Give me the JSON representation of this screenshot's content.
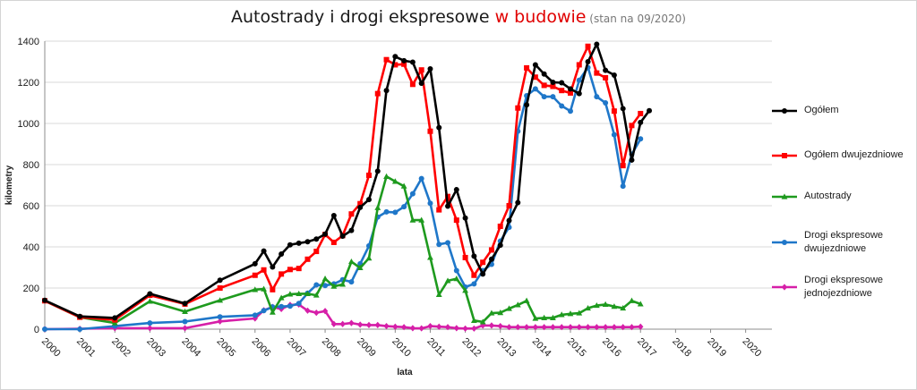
{
  "title": {
    "main": "Autostrady i drogi ekspresowe ",
    "highlight": "w budowie",
    "note": " (stan na 09/2020)"
  },
  "chart_data": {
    "type": "line",
    "title": "Autostrady i drogi ekspresowe w budowie (stan na 09/2020)",
    "xlabel": "lata",
    "ylabel": "kilometry",
    "ylim": [
      0,
      1400
    ],
    "yticks": [
      0,
      200,
      400,
      600,
      800,
      1000,
      1200,
      1400
    ],
    "xlim": [
      2000,
      2020.75
    ],
    "xticks": [
      "2000",
      "2001",
      "2002",
      "2003",
      "2004",
      "2005",
      "2006",
      "2007",
      "2008",
      "2009",
      "2010",
      "2011",
      "2012",
      "2013",
      "2014",
      "2015",
      "2016",
      "2017",
      "2018",
      "2019",
      "2020"
    ],
    "grid": "horizontal",
    "legend_position": "right",
    "series": [
      {
        "name": "Ogółem",
        "color": "#000000",
        "marker": "circle",
        "points": [
          [
            2000,
            140
          ],
          [
            2001,
            62
          ],
          [
            2002,
            55
          ],
          [
            2003,
            172
          ],
          [
            2004,
            125
          ],
          [
            2005,
            238
          ],
          [
            2006,
            318
          ],
          [
            2006.25,
            380
          ],
          [
            2006.5,
            302
          ],
          [
            2006.75,
            365
          ],
          [
            2007,
            410
          ],
          [
            2007.25,
            418
          ],
          [
            2007.5,
            425
          ],
          [
            2007.75,
            438
          ],
          [
            2008,
            462
          ],
          [
            2008.25,
            552
          ],
          [
            2008.5,
            452
          ],
          [
            2008.75,
            480
          ],
          [
            2009,
            592
          ],
          [
            2009.25,
            630
          ],
          [
            2009.5,
            768
          ],
          [
            2009.75,
            1160
          ],
          [
            2010,
            1325
          ],
          [
            2010.25,
            1305
          ],
          [
            2010.5,
            1298
          ],
          [
            2010.75,
            1195
          ],
          [
            2011,
            1265
          ],
          [
            2011.25,
            980
          ],
          [
            2011.5,
            598
          ],
          [
            2011.75,
            678
          ],
          [
            2012,
            540
          ],
          [
            2012.25,
            355
          ],
          [
            2012.5,
            268
          ],
          [
            2012.75,
            340
          ],
          [
            2013,
            408
          ],
          [
            2013.25,
            528
          ],
          [
            2013.5,
            615
          ],
          [
            2013.75,
            1090
          ],
          [
            2014,
            1285
          ],
          [
            2014.25,
            1240
          ],
          [
            2014.5,
            1200
          ],
          [
            2014.75,
            1198
          ],
          [
            2015,
            1168
          ],
          [
            2015.25,
            1145
          ],
          [
            2015.5,
            1300
          ],
          [
            2015.75,
            1385
          ],
          [
            2016,
            1258
          ],
          [
            2016.25,
            1235
          ],
          [
            2016.5,
            1072
          ],
          [
            2016.75,
            822
          ],
          [
            2017,
            1005
          ],
          [
            2017.25,
            1062
          ]
        ]
      },
      {
        "name": "Ogółem dwujezdniowe",
        "color": "#ff0000",
        "marker": "square",
        "points": [
          [
            2000,
            138
          ],
          [
            2001,
            58
          ],
          [
            2002,
            45
          ],
          [
            2003,
            165
          ],
          [
            2004,
            122
          ],
          [
            2005,
            200
          ],
          [
            2006,
            262
          ],
          [
            2006.25,
            288
          ],
          [
            2006.5,
            192
          ],
          [
            2006.75,
            268
          ],
          [
            2007,
            290
          ],
          [
            2007.25,
            295
          ],
          [
            2007.5,
            340
          ],
          [
            2007.75,
            378
          ],
          [
            2008,
            460
          ],
          [
            2008.25,
            422
          ],
          [
            2008.5,
            455
          ],
          [
            2008.75,
            560
          ],
          [
            2009,
            610
          ],
          [
            2009.25,
            748
          ],
          [
            2009.5,
            1145
          ],
          [
            2009.75,
            1310
          ],
          [
            2010,
            1285
          ],
          [
            2010.25,
            1288
          ],
          [
            2010.5,
            1190
          ],
          [
            2010.75,
            1260
          ],
          [
            2011,
            962
          ],
          [
            2011.25,
            580
          ],
          [
            2011.5,
            645
          ],
          [
            2011.75,
            530
          ],
          [
            2012,
            348
          ],
          [
            2012.25,
            262
          ],
          [
            2012.5,
            325
          ],
          [
            2012.75,
            385
          ],
          [
            2013,
            500
          ],
          [
            2013.25,
            600
          ],
          [
            2013.5,
            1075
          ],
          [
            2013.75,
            1270
          ],
          [
            2014,
            1225
          ],
          [
            2014.25,
            1185
          ],
          [
            2014.5,
            1180
          ],
          [
            2014.75,
            1160
          ],
          [
            2015,
            1148
          ],
          [
            2015.25,
            1285
          ],
          [
            2015.5,
            1375
          ],
          [
            2015.75,
            1245
          ],
          [
            2016,
            1222
          ],
          [
            2016.25,
            1060
          ],
          [
            2016.5,
            795
          ],
          [
            2016.75,
            990
          ],
          [
            2017,
            1048
          ]
        ]
      },
      {
        "name": "Autostrady",
        "color": "#1e9a1e",
        "marker": "triangle",
        "points": [
          [
            2000,
            138
          ],
          [
            2001,
            58
          ],
          [
            2002,
            30
          ],
          [
            2003,
            135
          ],
          [
            2004,
            85
          ],
          [
            2005,
            140
          ],
          [
            2006,
            192
          ],
          [
            2006.25,
            195
          ],
          [
            2006.5,
            82
          ],
          [
            2006.75,
            152
          ],
          [
            2007,
            170
          ],
          [
            2007.25,
            172
          ],
          [
            2007.5,
            172
          ],
          [
            2007.75,
            165
          ],
          [
            2008,
            245
          ],
          [
            2008.25,
            208
          ],
          [
            2008.5,
            218
          ],
          [
            2008.75,
            328
          ],
          [
            2009,
            298
          ],
          [
            2009.25,
            345
          ],
          [
            2009.5,
            590
          ],
          [
            2009.75,
            742
          ],
          [
            2010,
            718
          ],
          [
            2010.25,
            695
          ],
          [
            2010.5,
            530
          ],
          [
            2010.75,
            530
          ],
          [
            2011,
            348
          ],
          [
            2011.25,
            168
          ],
          [
            2011.5,
            235
          ],
          [
            2011.75,
            245
          ],
          [
            2012,
            188
          ],
          [
            2012.25,
            42
          ],
          [
            2012.5,
            35
          ],
          [
            2012.75,
            78
          ],
          [
            2013,
            80
          ],
          [
            2013.25,
            100
          ],
          [
            2013.5,
            118
          ],
          [
            2013.75,
            138
          ],
          [
            2014,
            52
          ],
          [
            2014.25,
            55
          ],
          [
            2014.5,
            55
          ],
          [
            2014.75,
            70
          ],
          [
            2015,
            75
          ],
          [
            2015.25,
            78
          ],
          [
            2015.5,
            102
          ],
          [
            2015.75,
            115
          ],
          [
            2016,
            120
          ],
          [
            2016.25,
            110
          ],
          [
            2016.5,
            102
          ],
          [
            2016.75,
            138
          ],
          [
            2017,
            122
          ]
        ]
      },
      {
        "name": "Drogi ekspresowe dwujezdniowe",
        "color": "#1f77c9",
        "marker": "circle",
        "points": [
          [
            2000,
            0
          ],
          [
            2001,
            0
          ],
          [
            2002,
            15
          ],
          [
            2003,
            30
          ],
          [
            2004,
            37
          ],
          [
            2005,
            60
          ],
          [
            2006,
            68
          ],
          [
            2006.25,
            90
          ],
          [
            2006.5,
            108
          ],
          [
            2006.75,
            110
          ],
          [
            2007,
            112
          ],
          [
            2007.25,
            125
          ],
          [
            2007.5,
            175
          ],
          [
            2007.75,
            215
          ],
          [
            2008,
            212
          ],
          [
            2008.25,
            220
          ],
          [
            2008.5,
            240
          ],
          [
            2008.75,
            230
          ],
          [
            2009,
            318
          ],
          [
            2009.25,
            405
          ],
          [
            2009.5,
            545
          ],
          [
            2009.75,
            570
          ],
          [
            2010,
            568
          ],
          [
            2010.25,
            595
          ],
          [
            2010.5,
            658
          ],
          [
            2010.75,
            732
          ],
          [
            2011,
            612
          ],
          [
            2011.25,
            412
          ],
          [
            2011.5,
            420
          ],
          [
            2011.75,
            285
          ],
          [
            2012,
            205
          ],
          [
            2012.25,
            220
          ],
          [
            2012.5,
            285
          ],
          [
            2012.75,
            315
          ],
          [
            2013,
            428
          ],
          [
            2013.25,
            495
          ],
          [
            2013.5,
            962
          ],
          [
            2013.75,
            1135
          ],
          [
            2014,
            1168
          ],
          [
            2014.25,
            1130
          ],
          [
            2014.5,
            1130
          ],
          [
            2014.75,
            1085
          ],
          [
            2015,
            1060
          ],
          [
            2015.25,
            1210
          ],
          [
            2015.5,
            1272
          ],
          [
            2015.75,
            1130
          ],
          [
            2016,
            1100
          ],
          [
            2016.25,
            945
          ],
          [
            2016.5,
            695
          ],
          [
            2016.75,
            850
          ],
          [
            2017,
            925
          ]
        ]
      },
      {
        "name": "Drogi ekspresowe jednojezdniowe",
        "color": "#d61fa8",
        "marker": "diamond",
        "points": [
          [
            2000,
            0
          ],
          [
            2001,
            2
          ],
          [
            2002,
            5
          ],
          [
            2003,
            5
          ],
          [
            2004,
            5
          ],
          [
            2005,
            38
          ],
          [
            2006,
            52
          ],
          [
            2006.25,
            92
          ],
          [
            2006.5,
            108
          ],
          [
            2006.75,
            98
          ],
          [
            2007,
            118
          ],
          [
            2007.25,
            120
          ],
          [
            2007.5,
            90
          ],
          [
            2007.75,
            80
          ],
          [
            2008,
            88
          ],
          [
            2008.25,
            25
          ],
          [
            2008.5,
            25
          ],
          [
            2008.75,
            30
          ],
          [
            2009,
            22
          ],
          [
            2009.25,
            20
          ],
          [
            2009.5,
            20
          ],
          [
            2009.75,
            15
          ],
          [
            2010,
            12
          ],
          [
            2010.25,
            10
          ],
          [
            2010.5,
            5
          ],
          [
            2010.75,
            4
          ],
          [
            2011,
            15
          ],
          [
            2011.25,
            12
          ],
          [
            2011.5,
            10
          ],
          [
            2011.75,
            5
          ],
          [
            2012,
            3
          ],
          [
            2012.25,
            3
          ],
          [
            2012.5,
            18
          ],
          [
            2012.75,
            18
          ],
          [
            2013,
            15
          ],
          [
            2013.25,
            10
          ],
          [
            2013.5,
            10
          ],
          [
            2013.75,
            10
          ],
          [
            2014,
            10
          ],
          [
            2014.25,
            10
          ],
          [
            2014.5,
            10
          ],
          [
            2014.75,
            10
          ],
          [
            2015,
            10
          ],
          [
            2015.25,
            10
          ],
          [
            2015.5,
            10
          ],
          [
            2015.75,
            10
          ],
          [
            2016,
            10
          ],
          [
            2016.25,
            10
          ],
          [
            2016.5,
            10
          ],
          [
            2016.75,
            10
          ],
          [
            2017,
            12
          ]
        ]
      }
    ]
  },
  "legend": {
    "items": [
      {
        "label": "Ogółem"
      },
      {
        "label": "Ogółem dwujezdniowe"
      },
      {
        "label": "Autostrady"
      },
      {
        "label": "Drogi ekspresowe dwujezdniowe"
      },
      {
        "label": "Drogi ekspresowe jednojezdniowe"
      }
    ]
  }
}
